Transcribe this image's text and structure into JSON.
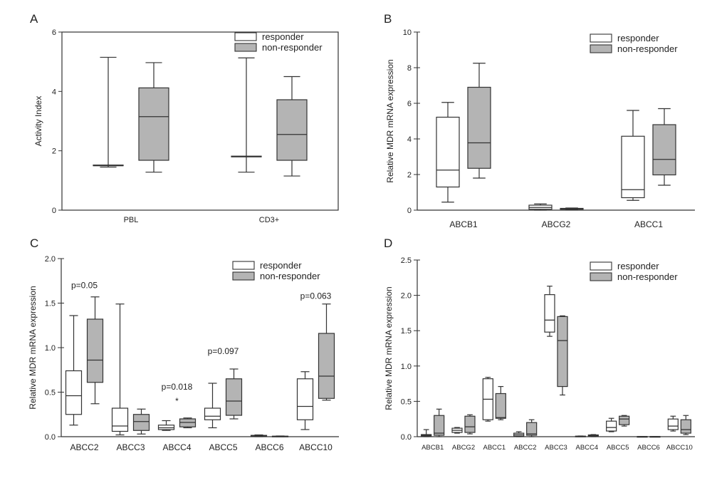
{
  "colors": {
    "responder_fill": "#ffffff",
    "nonresponder_fill": "#b4b4b4",
    "stroke": "#333333"
  },
  "chart_data": [
    {
      "panel": "A",
      "type": "boxplot",
      "ylabel": "Activity Index",
      "ylim": [
        0,
        6
      ],
      "yticks": [
        0,
        2,
        4,
        6
      ],
      "ytick_labels": [
        "0",
        "2",
        "4",
        "6"
      ],
      "categories": [
        "PBL",
        "CD3+"
      ],
      "legend": {
        "placement": "top-right",
        "entries": [
          "responder",
          "non-responder"
        ]
      },
      "series": [
        {
          "name": "responder",
          "boxes": [
            {
              "min": 1.45,
              "q1": 1.5,
              "median": 1.5,
              "q3": 1.52,
              "max": 5.15
            },
            {
              "min": 1.28,
              "q1": 1.8,
              "median": 1.8,
              "q3": 1.82,
              "max": 5.13
            }
          ]
        },
        {
          "name": "non-responder",
          "boxes": [
            {
              "min": 1.28,
              "q1": 1.68,
              "median": 3.15,
              "q3": 4.12,
              "max": 4.97
            },
            {
              "min": 1.15,
              "q1": 1.68,
              "median": 2.55,
              "q3": 3.72,
              "max": 4.5
            }
          ]
        }
      ],
      "annotations": []
    },
    {
      "panel": "B",
      "type": "boxplot",
      "ylabel": "Relative MDR mRNA expression",
      "ylim": [
        0,
        10
      ],
      "yticks": [
        0,
        2,
        4,
        6,
        8,
        10
      ],
      "ytick_labels": [
        "0",
        "2",
        "4",
        "6",
        "8",
        "10"
      ],
      "categories": [
        "ABCB1",
        "ABCG2",
        "ABCC1"
      ],
      "legend": {
        "placement": "top-right",
        "entries": [
          "responder",
          "non-responder"
        ]
      },
      "series": [
        {
          "name": "responder",
          "boxes": [
            {
              "min": 0.45,
              "q1": 1.3,
              "median": 2.25,
              "q3": 5.22,
              "max": 6.05
            },
            {
              "min": 0.0,
              "q1": 0.05,
              "median": 0.15,
              "q3": 0.28,
              "max": 0.35
            },
            {
              "min": 0.55,
              "q1": 0.7,
              "median": 1.15,
              "q3": 4.15,
              "max": 5.6
            }
          ]
        },
        {
          "name": "non-responder",
          "boxes": [
            {
              "min": 1.8,
              "q1": 2.35,
              "median": 3.78,
              "q3": 6.9,
              "max": 8.25
            },
            {
              "min": 0.02,
              "q1": 0.05,
              "median": 0.08,
              "q3": 0.1,
              "max": 0.12
            },
            {
              "min": 1.4,
              "q1": 1.98,
              "median": 2.85,
              "q3": 4.8,
              "max": 5.7
            }
          ]
        }
      ],
      "annotations": []
    },
    {
      "panel": "C",
      "type": "boxplot",
      "ylabel": "Relative MDR mRNA expression",
      "ylim": [
        0,
        2.0
      ],
      "yticks": [
        0,
        0.5,
        1.0,
        1.5,
        2.0
      ],
      "ytick_labels": [
        "0.0",
        "0.5",
        "1.0",
        "1.5",
        "2.0"
      ],
      "categories": [
        "ABCC2",
        "ABCC3",
        "ABCC4",
        "ABCC5",
        "ABCC6",
        "ABCC10"
      ],
      "legend": {
        "placement": "top-right",
        "entries": [
          "responder",
          "non-responder"
        ]
      },
      "series": [
        {
          "name": "responder",
          "boxes": [
            {
              "min": 0.13,
              "q1": 0.25,
              "median": 0.46,
              "q3": 0.74,
              "max": 1.36
            },
            {
              "min": 0.02,
              "q1": 0.06,
              "median": 0.12,
              "q3": 0.32,
              "max": 1.49
            },
            {
              "min": 0.07,
              "q1": 0.08,
              "median": 0.1,
              "q3": 0.13,
              "max": 0.18
            },
            {
              "min": 0.1,
              "q1": 0.19,
              "median": 0.23,
              "q3": 0.32,
              "max": 0.6
            },
            {
              "min": 0.0,
              "q1": 0.005,
              "median": 0.01,
              "q3": 0.015,
              "max": 0.02
            },
            {
              "min": 0.08,
              "q1": 0.19,
              "median": 0.34,
              "q3": 0.65,
              "max": 0.73
            }
          ]
        },
        {
          "name": "non-responder",
          "boxes": [
            {
              "min": 0.37,
              "q1": 0.61,
              "median": 0.86,
              "q3": 1.32,
              "max": 1.57
            },
            {
              "min": 0.03,
              "q1": 0.07,
              "median": 0.17,
              "q3": 0.25,
              "max": 0.31
            },
            {
              "min": 0.1,
              "q1": 0.11,
              "median": 0.16,
              "q3": 0.2,
              "max": 0.21
            },
            {
              "min": 0.2,
              "q1": 0.24,
              "median": 0.4,
              "q3": 0.65,
              "max": 0.76
            },
            {
              "min": 0.0,
              "q1": 0.002,
              "median": 0.004,
              "q3": 0.006,
              "max": 0.008
            },
            {
              "min": 0.41,
              "q1": 0.43,
              "median": 0.68,
              "q3": 1.16,
              "max": 1.49
            }
          ]
        }
      ],
      "annotations": [
        {
          "text": "p=0.05",
          "category": "ABCC2",
          "y": 1.67
        },
        {
          "text": "p=0.018",
          "category": "ABCC4",
          "y": 0.53
        },
        {
          "text": "*",
          "category": "ABCC4",
          "y": 0.37
        },
        {
          "text": "p=0.097",
          "category": "ABCC5",
          "y": 0.93
        },
        {
          "text": "p=0.063",
          "category": "ABCC10",
          "y": 1.55
        }
      ]
    },
    {
      "panel": "D",
      "type": "boxplot",
      "ylabel": "Relative MDR mRNA expression",
      "ylim": [
        0,
        2.5
      ],
      "yticks": [
        0,
        0.5,
        1.0,
        1.5,
        2.0,
        2.5
      ],
      "ytick_labels": [
        "0.0",
        "0.5",
        "1.0",
        "1.5",
        "2.0",
        "2.5"
      ],
      "categories": [
        "ABCB1",
        "ABCG2",
        "ABCC1",
        "ABCC2",
        "ABCC3",
        "ABCC4",
        "ABCC5",
        "ABCC6",
        "ABCC10"
      ],
      "legend": {
        "placement": "top-right",
        "entries": [
          "responder",
          "non-responder"
        ]
      },
      "series": [
        {
          "name": "responder",
          "boxes": [
            {
              "min": 0.0,
              "q1": 0.01,
              "median": 0.02,
              "q3": 0.03,
              "max": 0.1
            },
            {
              "min": 0.05,
              "q1": 0.06,
              "median": 0.09,
              "q3": 0.12,
              "max": 0.13
            },
            {
              "min": 0.22,
              "q1": 0.24,
              "median": 0.53,
              "q3": 0.82,
              "max": 0.84
            },
            {
              "min": 0.0,
              "q1": 0.01,
              "median": 0.03,
              "q3": 0.05,
              "max": 0.07
            },
            {
              "min": 1.42,
              "q1": 1.48,
              "median": 1.65,
              "q3": 2.01,
              "max": 2.13
            },
            {
              "min": 0.0,
              "q1": 0.002,
              "median": 0.005,
              "q3": 0.008,
              "max": 0.01
            },
            {
              "min": 0.07,
              "q1": 0.08,
              "median": 0.13,
              "q3": 0.22,
              "max": 0.26
            },
            {
              "min": 0.0,
              "q1": 0.001,
              "median": 0.002,
              "q3": 0.003,
              "max": 0.004
            },
            {
              "min": 0.08,
              "q1": 0.1,
              "median": 0.15,
              "q3": 0.25,
              "max": 0.29
            }
          ]
        },
        {
          "name": "non-responder",
          "boxes": [
            {
              "min": 0.0,
              "q1": 0.02,
              "median": 0.05,
              "q3": 0.3,
              "max": 0.39
            },
            {
              "min": 0.04,
              "q1": 0.06,
              "median": 0.14,
              "q3": 0.29,
              "max": 0.31
            },
            {
              "min": 0.24,
              "q1": 0.26,
              "median": 0.27,
              "q3": 0.61,
              "max": 0.71
            },
            {
              "min": 0.0,
              "q1": 0.02,
              "median": 0.04,
              "q3": 0.2,
              "max": 0.24
            },
            {
              "min": 0.59,
              "q1": 0.71,
              "median": 1.36,
              "q3": 1.7,
              "max": 1.71
            },
            {
              "min": 0.0,
              "q1": 0.005,
              "median": 0.015,
              "q3": 0.025,
              "max": 0.03
            },
            {
              "min": 0.15,
              "q1": 0.17,
              "median": 0.25,
              "q3": 0.29,
              "max": 0.3
            },
            {
              "min": 0.0,
              "q1": 0.001,
              "median": 0.002,
              "q3": 0.003,
              "max": 0.004
            },
            {
              "min": 0.03,
              "q1": 0.05,
              "median": 0.1,
              "q3": 0.24,
              "max": 0.3
            }
          ]
        }
      ],
      "annotations": []
    }
  ]
}
